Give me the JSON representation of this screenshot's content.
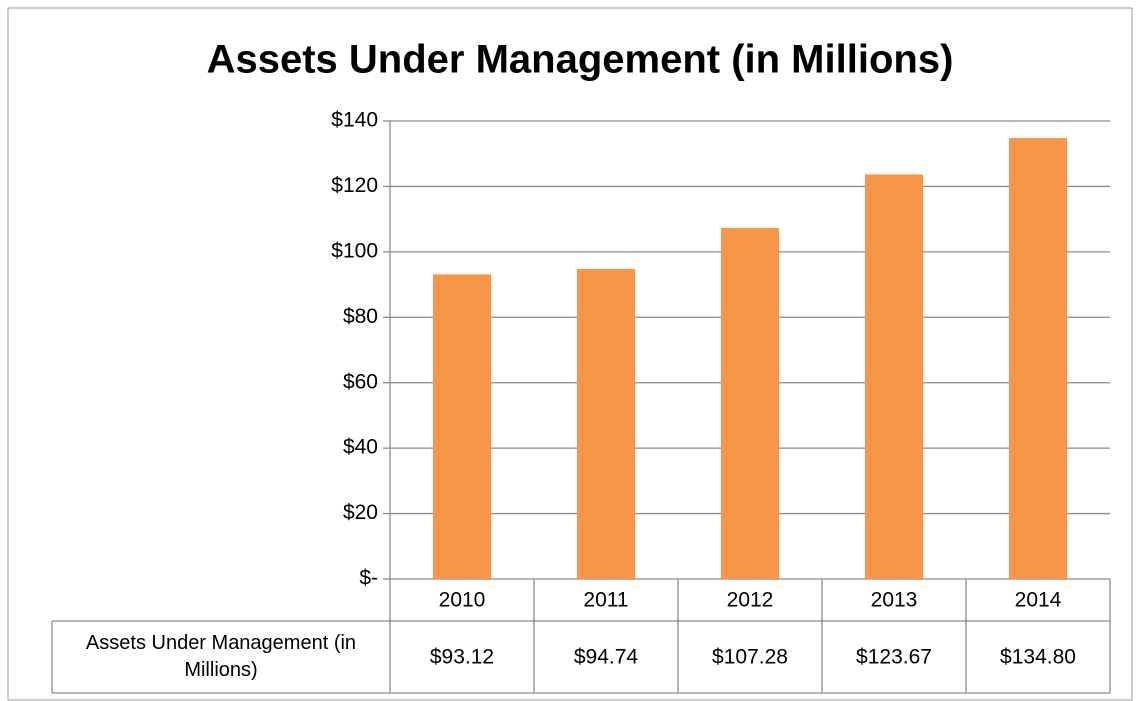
{
  "chart_data": {
    "type": "bar",
    "title": "Assets Under Management (in Millions)",
    "categories": [
      "2010",
      "2011",
      "2012",
      "2013",
      "2014"
    ],
    "series": [
      {
        "name": "Assets Under Management (in Millions)",
        "color": "#f79646",
        "values": [
          93.12,
          94.74,
          107.28,
          123.67,
          134.8
        ],
        "value_labels": [
          "$93.12",
          "$94.74",
          "$107.28",
          "$123.67",
          "$134.80"
        ]
      }
    ],
    "ylim": [
      0,
      140
    ],
    "yticks": [
      {
        "value": 0,
        "label": "$-"
      },
      {
        "value": 20,
        "label": "$20"
      },
      {
        "value": 40,
        "label": "$40"
      },
      {
        "value": 60,
        "label": "$60"
      },
      {
        "value": 80,
        "label": "$80"
      },
      {
        "value": 100,
        "label": "$100"
      },
      {
        "value": 120,
        "label": "$120"
      },
      {
        "value": 140,
        "label": "$140"
      }
    ],
    "grid": true
  }
}
